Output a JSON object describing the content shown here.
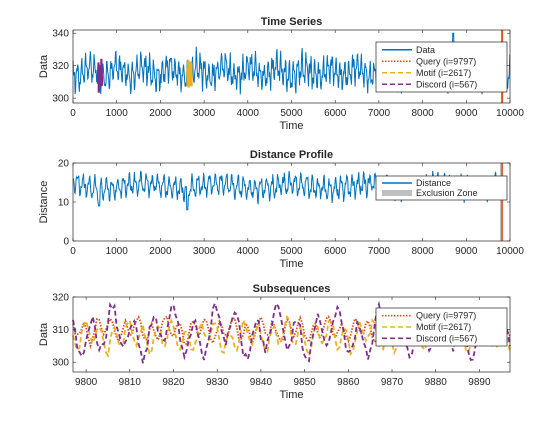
{
  "chart_data": [
    {
      "type": "line",
      "title": "Time Series",
      "xlabel": "Time",
      "ylabel": "Data",
      "xlim": [
        0,
        10000
      ],
      "ylim": [
        297,
        342
      ],
      "xticks": [
        0,
        1000,
        2000,
        3000,
        4000,
        5000,
        6000,
        7000,
        8000,
        9000,
        10000
      ],
      "yticks": [
        300,
        320,
        340
      ],
      "legend_position": "top-right",
      "series": [
        {
          "name": "Data",
          "color": "#0072BD",
          "style": "solid",
          "x_range": [
            0,
            10000
          ],
          "baseline": 316,
          "amplitude": 12,
          "peak_value": 340,
          "peak_at": 8700
        },
        {
          "name": "Query (i=9797)",
          "color": "#D95319",
          "style": "dotted",
          "x_range": [
            9797,
            9897
          ]
        },
        {
          "name": "Motif (i=2617)",
          "color": "#EDB120",
          "style": "dashed",
          "x_range": [
            2617,
            2717
          ]
        },
        {
          "name": "Discord (i=567)",
          "color": "#7E2F8E",
          "style": "dashed",
          "x_range": [
            567,
            667
          ]
        }
      ]
    },
    {
      "type": "line",
      "title": "Distance Profile",
      "xlabel": "Time",
      "ylabel": "Distance",
      "xlim": [
        0,
        10000
      ],
      "ylim": [
        0,
        20
      ],
      "xticks": [
        0,
        1000,
        2000,
        3000,
        4000,
        5000,
        6000,
        7000,
        8000,
        9000,
        10000
      ],
      "yticks": [
        0,
        10,
        20
      ],
      "legend_position": "top-right",
      "series": [
        {
          "name": "Distance",
          "color": "#0072BD",
          "style": "solid",
          "x_range": [
            0,
            9900
          ],
          "baseline": 14,
          "amplitude": 3.5,
          "min_value": 8,
          "min_at": 2617
        },
        {
          "name": "Exclusion Zone",
          "color": "#BFBFBF",
          "style": "band",
          "x_range": [
            9772,
            9822
          ],
          "marker_x": 9797
        }
      ]
    },
    {
      "type": "line",
      "title": "Subsequences",
      "xlabel": "Time",
      "ylabel": "Data",
      "xlim": [
        9797,
        9897
      ],
      "ylim": [
        297,
        320
      ],
      "xticks": [
        9800,
        9810,
        9820,
        9830,
        9840,
        9850,
        9860,
        9870,
        9880,
        9890
      ],
      "yticks": [
        300,
        310,
        320
      ],
      "legend_position": "top-right",
      "series": [
        {
          "name": "Query (i=9797)",
          "color": "#D95319",
          "style": "dotted",
          "baseline": 310,
          "amplitude": 4
        },
        {
          "name": "Motif (i=2617)",
          "color": "#EDB120",
          "style": "dashed",
          "baseline": 308,
          "amplitude": 5
        },
        {
          "name": "Discord (i=567)",
          "color": "#7E2F8E",
          "style": "dashed",
          "baseline": 309,
          "amplitude": 7
        }
      ]
    }
  ]
}
